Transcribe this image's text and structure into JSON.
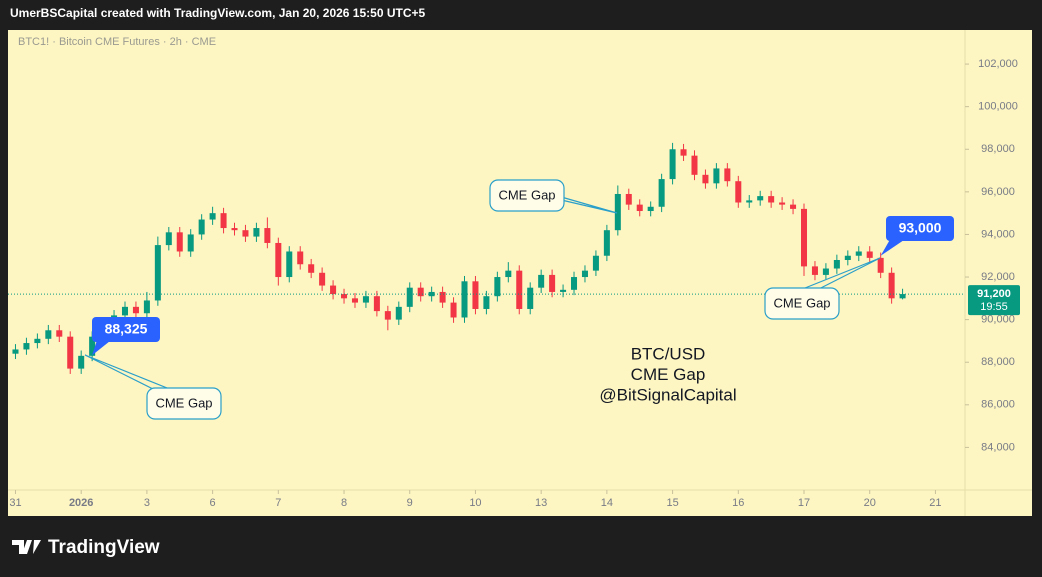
{
  "header": "UmerBSCapital created with TradingView.com, Jan 20, 2026 15:50 UTC+5",
  "footer": {
    "brand": "TradingView"
  },
  "chart_data": {
    "type": "candlestick",
    "title": "BTC1! · Bitcoin CME Futures · 2h · CME",
    "annotation": [
      "BTC/USD",
      "CME Gap",
      "@BitSignalCapital"
    ],
    "callouts": [
      "CME Gap",
      "CME Gap",
      "CME Gap"
    ],
    "price_labels": [
      {
        "value": 88325,
        "label": "88,325"
      },
      {
        "value": 93000,
        "label": "93,000"
      }
    ],
    "last_price": {
      "value": 91200,
      "label": "91,200"
    },
    "countdown": "19:55",
    "up_color": "#089981",
    "down_color": "#f23645",
    "x": [
      0,
      1,
      2,
      3,
      4,
      5,
      6,
      7,
      8,
      9,
      10,
      11,
      12,
      13,
      14,
      15,
      16,
      17,
      18,
      19,
      20,
      21,
      22,
      23,
      24,
      25,
      26,
      27,
      28,
      29,
      30,
      31,
      32,
      33,
      34,
      35,
      36,
      37,
      38,
      39,
      40,
      41,
      42,
      43,
      44,
      45,
      46,
      47,
      48,
      49,
      50,
      51,
      52,
      53,
      54,
      55,
      56,
      57,
      58,
      59,
      60,
      61,
      62,
      63,
      64,
      65,
      66,
      67,
      68,
      69,
      70,
      71,
      72,
      73,
      74,
      75,
      76,
      77,
      78,
      79,
      80,
      81
    ],
    "open": [
      88400,
      88600,
      88900,
      89100,
      89500,
      89200,
      87700,
      88300,
      89200,
      89700,
      90200,
      90600,
      90300,
      90900,
      93500,
      94100,
      93200,
      94000,
      94700,
      95000,
      94300,
      94200,
      93900,
      94300,
      93600,
      92000,
      93200,
      92600,
      92200,
      91600,
      91200,
      91000,
      90800,
      91100,
      90400,
      90000,
      90600,
      91500,
      91100,
      91300,
      90800,
      90100,
      91800,
      90500,
      91100,
      92000,
      92300,
      90500,
      91500,
      92100,
      91300,
      91400,
      92000,
      92300,
      93000,
      94200,
      95900,
      95400,
      95100,
      95300,
      96600,
      98000,
      97700,
      96800,
      96400,
      97100,
      96500,
      95500,
      95600,
      95800,
      95500,
      95400,
      95200,
      92500,
      92100,
      92400,
      92800,
      93000,
      93200,
      92900,
      92200,
      91000
    ],
    "high": [
      88850,
      89150,
      89350,
      89750,
      89750,
      89450,
      88550,
      89450,
      89950,
      90450,
      90850,
      90850,
      91300,
      93900,
      94350,
      94350,
      94250,
      94950,
      95300,
      95250,
      94550,
      94450,
      94550,
      94800,
      93850,
      93450,
      93450,
      92850,
      92450,
      91850,
      91450,
      91250,
      91350,
      91350,
      90650,
      90850,
      91750,
      91750,
      91550,
      91550,
      91050,
      92050,
      92050,
      91350,
      92250,
      92700,
      92550,
      91750,
      92350,
      92350,
      91650,
      92250,
      92550,
      93250,
      94450,
      96300,
      96150,
      95650,
      95550,
      96850,
      98300,
      98250,
      97950,
      97050,
      97350,
      97350,
      96750,
      95850,
      96050,
      96050,
      95750,
      95650,
      95450,
      92750,
      92650,
      93050,
      93250,
      93450,
      93450,
      93150,
      92450,
      91450
    ],
    "low": [
      88150,
      88350,
      88650,
      88850,
      88950,
      87450,
      87450,
      88050,
      88950,
      89450,
      89950,
      90050,
      90050,
      90650,
      93250,
      92950,
      92950,
      93750,
      94450,
      94050,
      93950,
      93650,
      93650,
      93350,
      91600,
      91750,
      92350,
      91950,
      91350,
      90950,
      90750,
      90550,
      90550,
      90150,
      89500,
      89750,
      90350,
      90850,
      90850,
      90550,
      89850,
      89850,
      90250,
      90250,
      90850,
      91750,
      90250,
      90250,
      91250,
      91050,
      91050,
      91150,
      91750,
      92050,
      92750,
      93950,
      95150,
      94850,
      94850,
      95050,
      96350,
      97450,
      96550,
      96150,
      96150,
      96250,
      95250,
      95250,
      95350,
      95250,
      95150,
      94950,
      92050,
      91850,
      91850,
      92150,
      92550,
      92750,
      92650,
      91950,
      90750,
      90950
    ],
    "close": [
      88600,
      88900,
      89100,
      89500,
      89200,
      87700,
      88300,
      89200,
      89700,
      90200,
      90600,
      90300,
      90900,
      93500,
      94100,
      93200,
      94000,
      94700,
      95000,
      94300,
      94200,
      93900,
      94300,
      93600,
      92000,
      93200,
      92600,
      92200,
      91600,
      91200,
      91000,
      90800,
      91100,
      90400,
      90000,
      90600,
      91500,
      91100,
      91300,
      90800,
      90100,
      91800,
      90500,
      91100,
      92000,
      92300,
      90500,
      91500,
      92100,
      91300,
      91400,
      92000,
      92300,
      93000,
      94200,
      95900,
      95400,
      95100,
      95300,
      96600,
      98000,
      97700,
      96800,
      96400,
      97100,
      96500,
      95500,
      95600,
      95800,
      95500,
      95400,
      95200,
      92500,
      92100,
      92400,
      92800,
      93000,
      93200,
      92900,
      92200,
      91000,
      91200
    ],
    "xlim": [
      -0.5,
      86.7
    ],
    "xticks": [
      {
        "value": 0,
        "label": "31"
      },
      {
        "value": 6,
        "label": "2026"
      },
      {
        "value": 12,
        "label": "3"
      },
      {
        "value": 18,
        "label": "6"
      },
      {
        "value": 24,
        "label": "7"
      },
      {
        "value": 30,
        "label": "8"
      },
      {
        "value": 36,
        "label": "9"
      },
      {
        "value": 42,
        "label": "10"
      },
      {
        "value": 48,
        "label": "13"
      },
      {
        "value": 54,
        "label": "14"
      },
      {
        "value": 60,
        "label": "15"
      },
      {
        "value": 66,
        "label": "16"
      },
      {
        "value": 72,
        "label": "17"
      },
      {
        "value": 78,
        "label": "20"
      },
      {
        "value": 84,
        "label": "21"
      }
    ],
    "ylim": [
      82000,
      103600
    ],
    "yticks": [
      {
        "value": 84000,
        "label": "84,000"
      },
      {
        "value": 86000,
        "label": "86,000"
      },
      {
        "value": 88000,
        "label": "88,000"
      },
      {
        "value": 90000,
        "label": "90,000"
      },
      {
        "value": 92000,
        "label": "92,000"
      },
      {
        "value": 94000,
        "label": "94,000"
      },
      {
        "value": 96000,
        "label": "96,000"
      },
      {
        "value": 98000,
        "label": "98,000"
      },
      {
        "value": 100000,
        "label": "100,000"
      },
      {
        "value": 102000,
        "label": "102,000"
      }
    ]
  }
}
